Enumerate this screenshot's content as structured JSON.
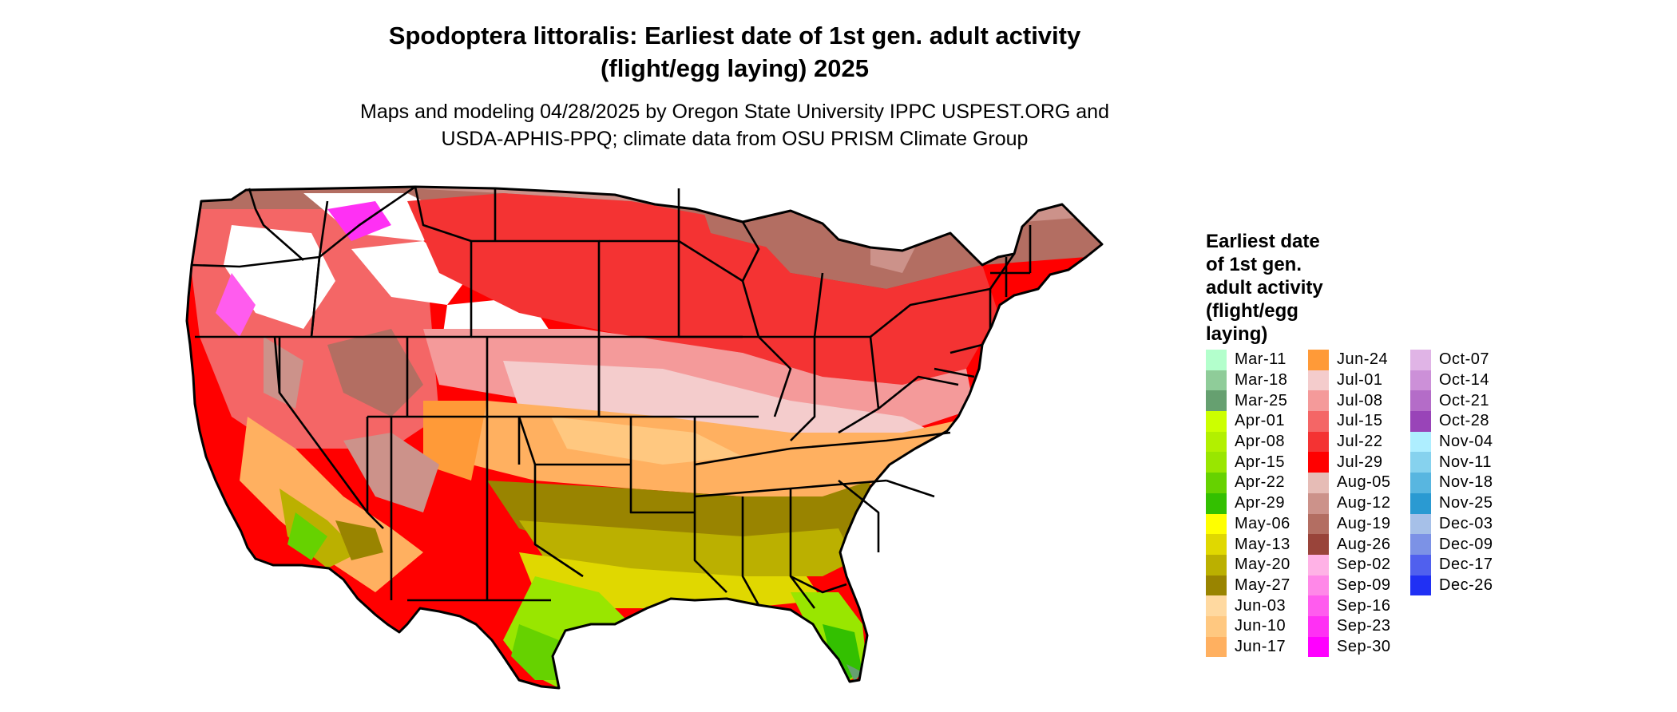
{
  "title": [
    "Spodoptera littoralis: Earliest date of 1st gen. adult activity",
    "(flight/egg laying) 2025"
  ],
  "subtitle": [
    "Maps and modeling 04/28/2025 by Oregon State University IPPC USPEST.ORG and",
    "USDA-APHIS-PPQ; climate data from OSU PRISM Climate Group"
  ],
  "legend": {
    "title": [
      "Earliest date",
      "of 1st gen.",
      "adult activity",
      "(flight/egg",
      "laying)"
    ],
    "columns": [
      [
        {
          "label": "Mar-11",
          "color": "#b3ffcc"
        },
        {
          "label": "Mar-18",
          "color": "#8fcc99"
        },
        {
          "label": "Mar-25",
          "color": "#66a070"
        },
        {
          "label": "Apr-01",
          "color": "#ccff00"
        },
        {
          "label": "Apr-08",
          "color": "#b2f000"
        },
        {
          "label": "Apr-15",
          "color": "#99e600"
        },
        {
          "label": "Apr-22",
          "color": "#66d200"
        },
        {
          "label": "Apr-29",
          "color": "#33c000"
        },
        {
          "label": "May-06",
          "color": "#ffff00"
        },
        {
          "label": "May-13",
          "color": "#e0d800"
        },
        {
          "label": "May-20",
          "color": "#bbb000"
        },
        {
          "label": "May-27",
          "color": "#998400"
        },
        {
          "label": "Jun-03",
          "color": "#ffd9a0"
        },
        {
          "label": "Jun-10",
          "color": "#ffc880"
        },
        {
          "label": "Jun-17",
          "color": "#ffb060"
        }
      ],
      [
        {
          "label": "Jun-24",
          "color": "#ff9a38"
        },
        {
          "label": "Jul-01",
          "color": "#f4cccc"
        },
        {
          "label": "Jul-08",
          "color": "#f49a9a"
        },
        {
          "label": "Jul-15",
          "color": "#f46666"
        },
        {
          "label": "Jul-22",
          "color": "#f43333"
        },
        {
          "label": "Jul-29",
          "color": "#ff0000"
        },
        {
          "label": "Aug-05",
          "color": "#e6bcb6"
        },
        {
          "label": "Aug-12",
          "color": "#cc928a"
        },
        {
          "label": "Aug-19",
          "color": "#b36e62"
        },
        {
          "label": "Aug-26",
          "color": "#99443a"
        },
        {
          "label": "Sep-02",
          "color": "#ffb2e6"
        },
        {
          "label": "Sep-09",
          "color": "#ff88e8"
        },
        {
          "label": "Sep-16",
          "color": "#ff5cee"
        },
        {
          "label": "Sep-23",
          "color": "#ff30f4"
        },
        {
          "label": "Sep-30",
          "color": "#ff00ff"
        }
      ],
      [
        {
          "label": "Oct-07",
          "color": "#e0b4e6"
        },
        {
          "label": "Oct-14",
          "color": "#cc90d8"
        },
        {
          "label": "Oct-21",
          "color": "#b46cc8"
        },
        {
          "label": "Oct-28",
          "color": "#9944b8"
        },
        {
          "label": "Nov-04",
          "color": "#aeeeff"
        },
        {
          "label": "Nov-11",
          "color": "#86d2ee"
        },
        {
          "label": "Nov-18",
          "color": "#58b6e0"
        },
        {
          "label": "Nov-25",
          "color": "#2a9ad2"
        },
        {
          "label": "Dec-03",
          "color": "#a6c0e8"
        },
        {
          "label": "Dec-09",
          "color": "#7c92e6"
        },
        {
          "label": "Dec-17",
          "color": "#5060ee"
        },
        {
          "label": "Dec-26",
          "color": "#2030f4"
        }
      ]
    ]
  },
  "colors": {
    "background": "#ffffff",
    "state_border": "#000000",
    "unsuitable": "#ffffff"
  }
}
